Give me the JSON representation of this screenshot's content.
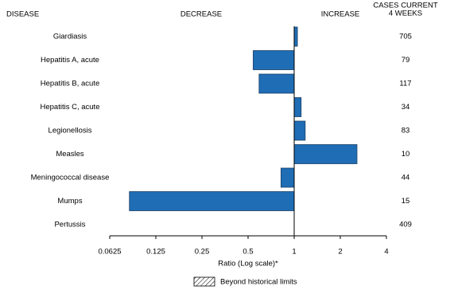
{
  "chart_data": {
    "type": "bar",
    "orientation": "horizontal",
    "log_scale": true,
    "log_base": 2,
    "baseline": 1,
    "headers": {
      "disease": "DISEASE",
      "decrease": "DECREASE",
      "increase": "INCREASE",
      "cases": [
        "CASES CURRENT",
        "4 WEEKS"
      ]
    },
    "categories": [
      "Giardiasis",
      "Hepatitis A, acute",
      "Hepatitis B, acute",
      "Hepatitis C, acute",
      "Legionellosis",
      "Measles",
      "Meningococcal disease",
      "Mumps",
      "Pertussis"
    ],
    "values": [
      1.05,
      0.54,
      0.59,
      1.11,
      1.18,
      2.57,
      0.82,
      0.084,
      1
    ],
    "cases": [
      705,
      79,
      117,
      34,
      83,
      10,
      44,
      15,
      409
    ],
    "color": "#1f6db5",
    "xlim": [
      0.0625,
      4
    ],
    "xticks": [
      0.0625,
      0.125,
      0.25,
      0.5,
      1,
      2,
      4
    ],
    "xlabel": "Ratio (Log scale)*",
    "legend": {
      "label": "Beyond historical limits"
    }
  }
}
